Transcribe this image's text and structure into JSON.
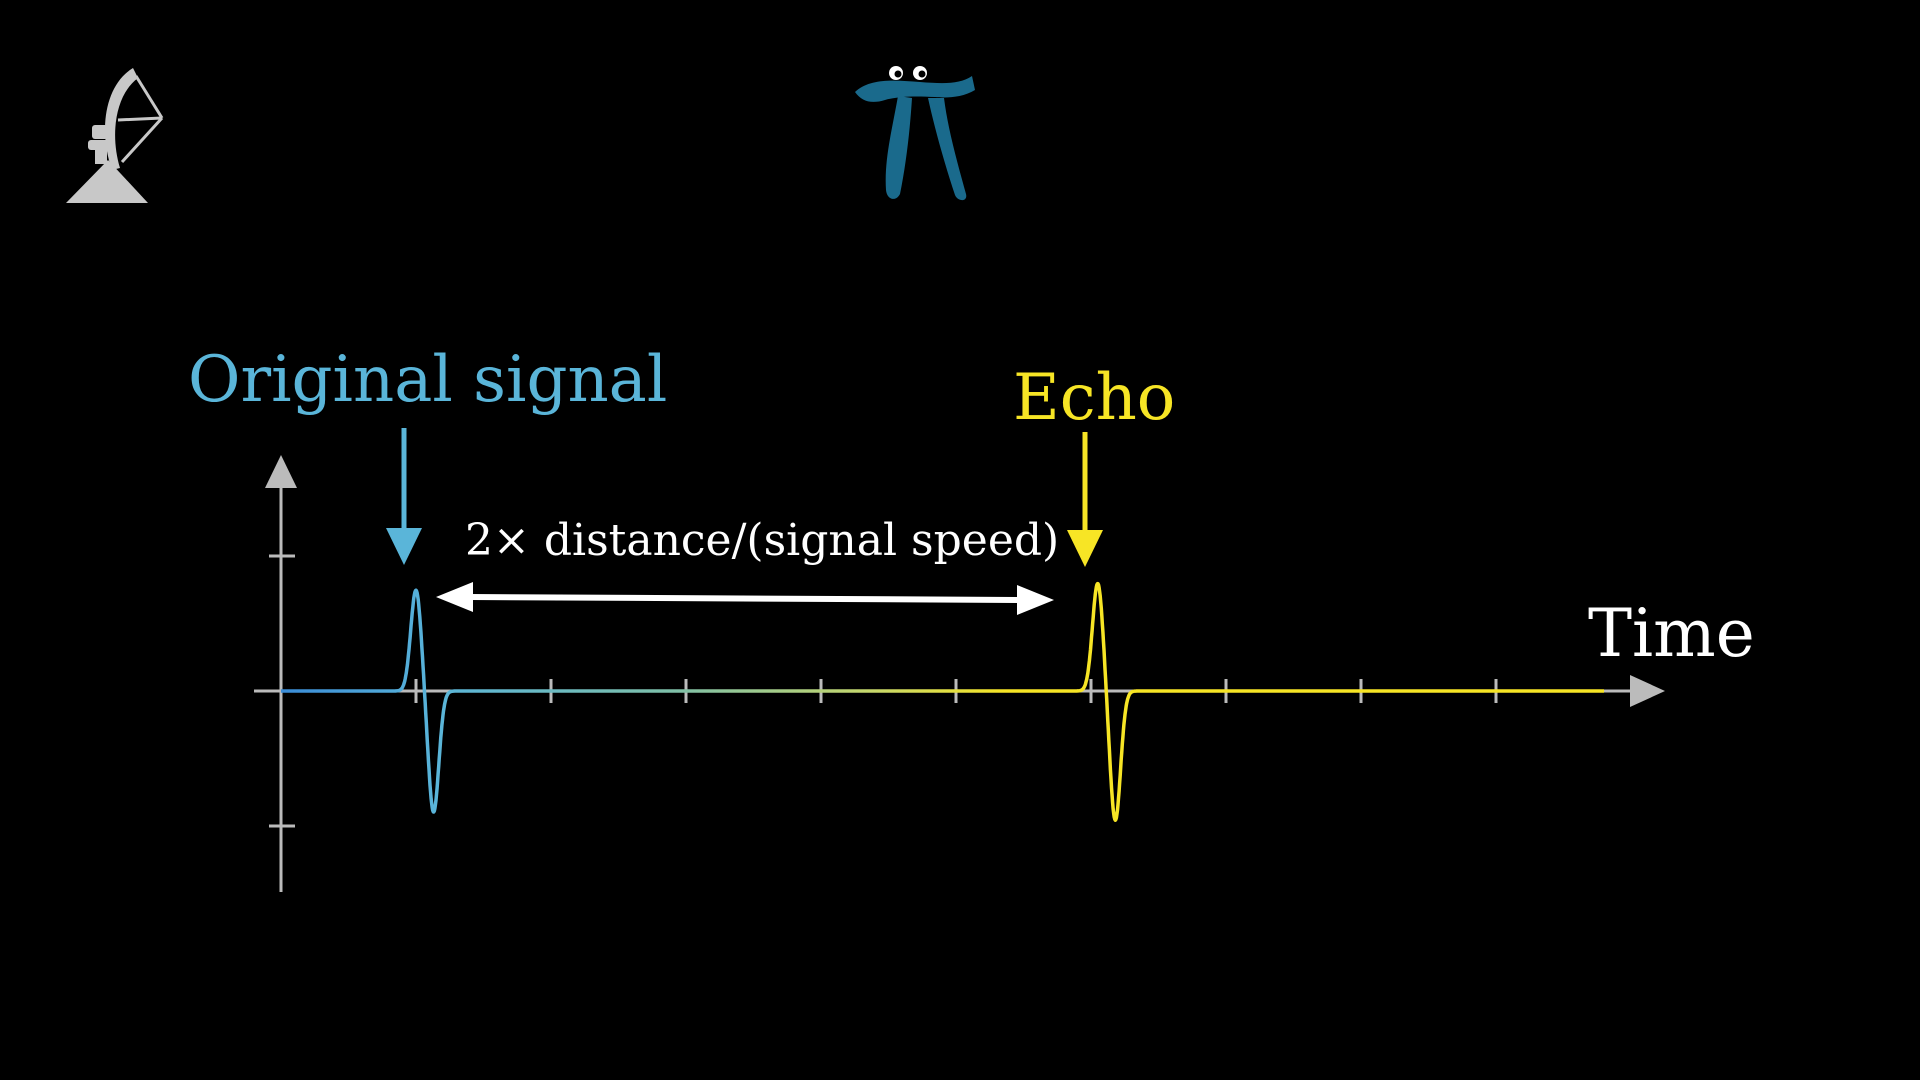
{
  "labels": {
    "original": "Original signal",
    "echo": "Echo",
    "delay": "2× distance/(signal speed)",
    "x_axis": "Time"
  },
  "icons": {
    "radar": "radar-dish-icon",
    "pi_character": "pi-creature-icon"
  },
  "colors": {
    "background": "#000000",
    "original": "#5ab5d9",
    "echo": "#f7e525",
    "axis": "#bbbbbb",
    "arrow": "#ffffff",
    "pi": "#1a6a8c",
    "radar": "#c8c8c8"
  },
  "chart_data": {
    "type": "line",
    "x_ticks": [
      1,
      2,
      3,
      4,
      5,
      6,
      7,
      8,
      9
    ],
    "y_ticks": [
      -1,
      1
    ],
    "xlim": [
      0,
      10.3
    ],
    "ylim": [
      -1.5,
      1.6
    ],
    "grid": false,
    "pulses": [
      {
        "center": 1.0,
        "amplitude": 0.75
      },
      {
        "center": 6.05,
        "amplitude": 0.8
      }
    ],
    "gradient_switch_x": 3.5
  }
}
